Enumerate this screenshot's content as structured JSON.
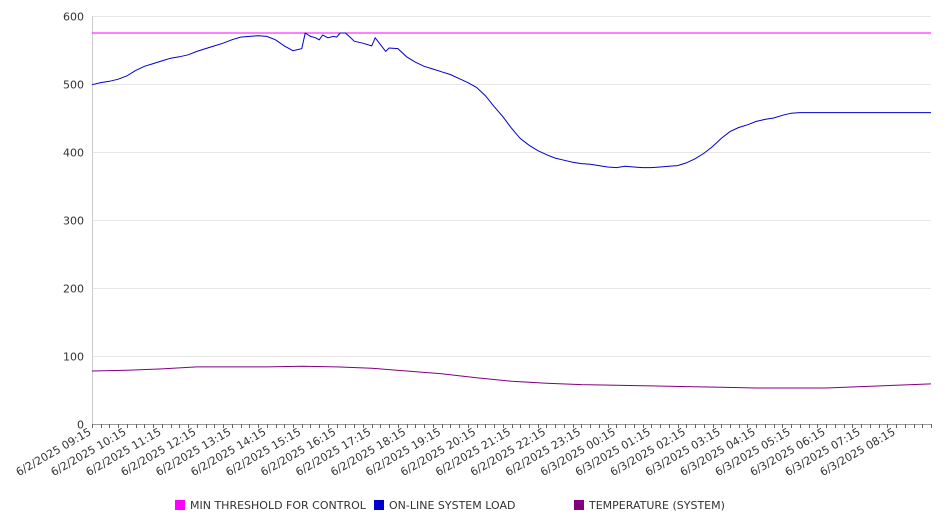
{
  "chart_data": {
    "type": "line",
    "x_tick_labels": [
      "6/2/2025 09:15",
      "6/2/2025 10:15",
      "6/2/2025 11:15",
      "6/2/2025 12:15",
      "6/2/2025 13:15",
      "6/2/2025 14:15",
      "6/2/2025 15:15",
      "6/2/2025 16:15",
      "6/2/2025 17:15",
      "6/2/2025 18:15",
      "6/2/2025 19:15",
      "6/2/2025 20:15",
      "6/2/2025 21:15",
      "6/2/2025 22:15",
      "6/2/2025 23:15",
      "6/3/2025 00:15",
      "6/3/2025 01:15",
      "6/3/2025 02:15",
      "6/3/2025 03:15",
      "6/3/2025 04:15",
      "6/3/2025 05:15",
      "6/3/2025 06:15",
      "6/3/2025 07:15",
      "6/3/2025 08:15"
    ],
    "x_range_hours": [
      0,
      24
    ],
    "ylim": [
      0,
      600
    ],
    "y_ticks": [
      0,
      100,
      200,
      300,
      400,
      500,
      600
    ],
    "grid": true,
    "legend_position": "bottom",
    "series": [
      {
        "name": "MIN THRESHOLD FOR CONTROL",
        "color": "#ff00ff",
        "x": [
          0,
          24
        ],
        "y": [
          575,
          575
        ]
      },
      {
        "name": "ON-LINE SYSTEM LOAD",
        "color": "#0000cc",
        "x": [
          0,
          0.25,
          0.5,
          0.75,
          1,
          1.25,
          1.5,
          1.75,
          2,
          2.25,
          2.5,
          2.75,
          3,
          3.25,
          3.5,
          3.75,
          4,
          4.25,
          4.5,
          4.75,
          5,
          5.25,
          5.5,
          5.75,
          6,
          6.1,
          6.25,
          6.4,
          6.5,
          6.6,
          6.75,
          6.9,
          7,
          7.1,
          7.25,
          7.4,
          7.5,
          7.75,
          8,
          8.1,
          8.25,
          8.4,
          8.5,
          8.75,
          9,
          9.25,
          9.5,
          9.75,
          10,
          10.25,
          10.5,
          10.75,
          11,
          11.25,
          11.5,
          11.75,
          12,
          12.25,
          12.5,
          12.75,
          13,
          13.25,
          13.5,
          13.75,
          14,
          14.25,
          14.5,
          14.75,
          15,
          15.25,
          15.5,
          15.75,
          16,
          16.25,
          16.5,
          16.75,
          17,
          17.25,
          17.5,
          17.75,
          18,
          18.25,
          18.5,
          18.75,
          19,
          19.25,
          19.5,
          19.75,
          20,
          20.25,
          20.5,
          20.75,
          21,
          21.25,
          21.5,
          21.75,
          22,
          22.25,
          22.5,
          22.75,
          23,
          23.25,
          23.5,
          23.75,
          24
        ],
        "y": [
          499,
          502,
          504,
          507,
          512,
          520,
          526,
          530,
          534,
          538,
          540,
          543,
          548,
          552,
          556,
          560,
          565,
          569,
          570,
          571,
          570,
          565,
          556,
          549,
          552,
          575,
          570,
          568,
          565,
          572,
          568,
          570,
          569,
          575,
          575,
          568,
          563,
          560,
          556,
          568,
          558,
          548,
          553,
          552,
          540,
          532,
          526,
          522,
          518,
          514,
          508,
          502,
          495,
          483,
          467,
          452,
          435,
          420,
          410,
          402,
          396,
          391,
          388,
          385,
          383,
          382,
          380,
          378,
          377,
          379,
          378,
          377,
          377,
          378,
          379,
          380,
          384,
          390,
          398,
          408,
          420,
          430,
          436,
          440,
          445,
          448,
          450,
          454,
          457,
          458,
          458,
          458,
          458,
          458,
          458,
          458,
          458,
          458,
          458,
          458,
          458,
          458,
          458,
          458,
          458
        ]
      },
      {
        "name": "TEMPERATURE (SYSTEM)",
        "color": "#800080",
        "x": [
          0,
          1,
          2,
          3,
          4,
          5,
          6,
          7,
          8,
          9,
          10,
          11,
          12,
          13,
          14,
          15,
          16,
          17,
          18,
          19,
          20,
          21,
          22,
          23,
          24
        ],
        "y": [
          78,
          79,
          81,
          84,
          84,
          84,
          85,
          84,
          82,
          78,
          74,
          68,
          63,
          60,
          58,
          57,
          56,
          55,
          54,
          53,
          53,
          53,
          55,
          57,
          59
        ]
      }
    ]
  }
}
